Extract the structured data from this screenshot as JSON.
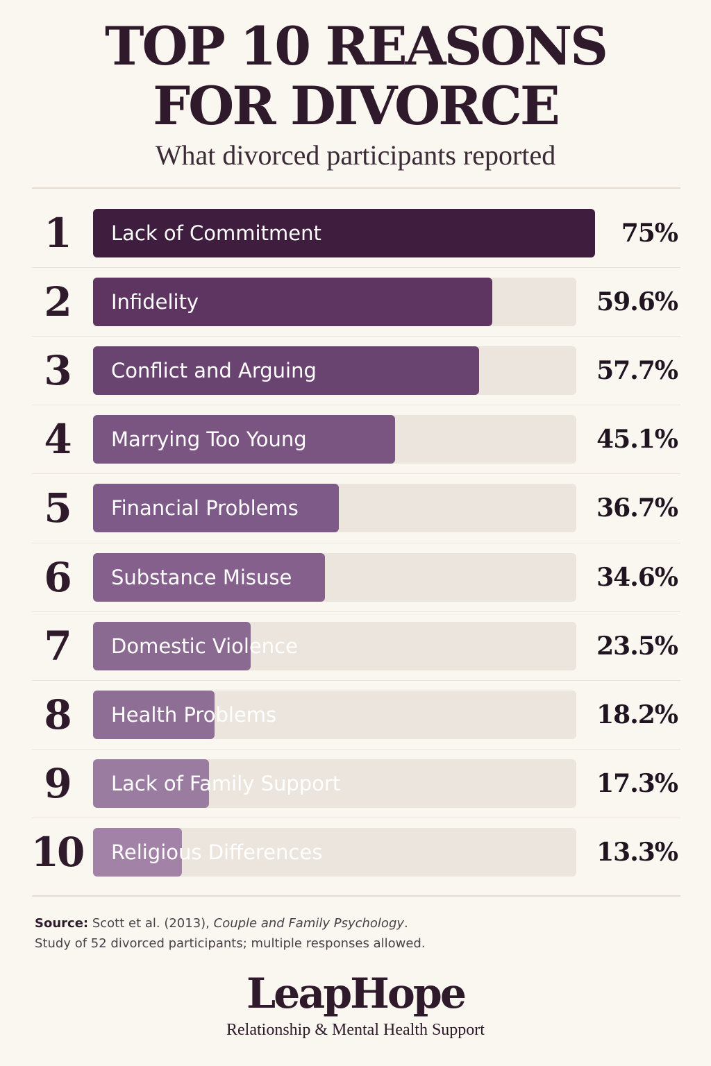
{
  "header": {
    "title_line1": "TOP 10 REASONS",
    "title_line2": "FOR DIVORCE",
    "subtitle": "What divorced participants reported"
  },
  "chart_data": {
    "type": "bar",
    "orientation": "horizontal",
    "title": "TOP 10 REASONS FOR DIVORCE",
    "subtitle": "What divorced participants reported",
    "ranks": [
      "1",
      "2",
      "3",
      "4",
      "5",
      "6",
      "7",
      "8",
      "9",
      "10"
    ],
    "categories": [
      "Lack of Commitment",
      "Infidelity",
      "Conflict and Arguing",
      "Marrying Too Young",
      "Financial Problems",
      "Substance Misuse",
      "Domestic Violence",
      "Health Problems",
      "Lack of Family Support",
      "Religious Differences"
    ],
    "values": [
      75,
      59.6,
      57.7,
      45.1,
      36.7,
      34.6,
      23.5,
      18.2,
      17.3,
      13.3
    ],
    "value_labels": [
      "75%",
      "59.6%",
      "57.7%",
      "45.1%",
      "36.7%",
      "34.6%",
      "23.5%",
      "18.2%",
      "17.3%",
      "13.3%"
    ],
    "unit": "%",
    "xlim": [
      0,
      75
    ],
    "grid": false,
    "colors": [
      "#3f1d3e",
      "#5e3561",
      "#6a4470",
      "#7b5581",
      "#7e5a88",
      "#85608c",
      "#8a6a91",
      "#8f6e95",
      "#9a7ca0",
      "#a283a7"
    ],
    "track_color": "#ebe5dd"
  },
  "footer": {
    "source_label": "Source:",
    "source_text": " Scott et al. (2013), ",
    "source_journal": "Couple and Family Psychology",
    "source_end": ".",
    "source_note": "Study of 52 divorced participants; multiple responses allowed.",
    "brand": "LeapHope",
    "tagline": "Relationship & Mental Health Support"
  }
}
